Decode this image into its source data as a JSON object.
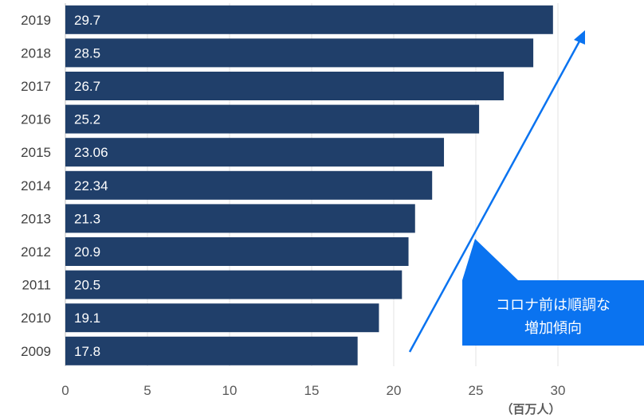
{
  "chart_data": {
    "type": "bar",
    "orientation": "horizontal",
    "categories": [
      "2019",
      "2018",
      "2017",
      "2016",
      "2015",
      "2014",
      "2013",
      "2012",
      "2011",
      "2010",
      "2009"
    ],
    "values": [
      29.7,
      28.5,
      26.7,
      25.2,
      23.06,
      22.34,
      21.3,
      20.9,
      20.5,
      19.1,
      17.8
    ],
    "data_labels": [
      "29.7",
      "28.5",
      "26.7",
      "25.2",
      "23.06",
      "22.34",
      "21.3",
      "20.9",
      "20.5",
      "19.1",
      "17.8"
    ],
    "xlim": [
      0,
      30
    ],
    "x_ticks": [
      "0",
      "5",
      "10",
      "15",
      "20",
      "25",
      "30"
    ],
    "x_unit": "（百万人）",
    "grid": true,
    "bar_color": "#203f6a",
    "annotation": {
      "text_lines": [
        "コロナ前は順調な",
        "増加傾向"
      ],
      "color": "#0a73f0"
    }
  }
}
